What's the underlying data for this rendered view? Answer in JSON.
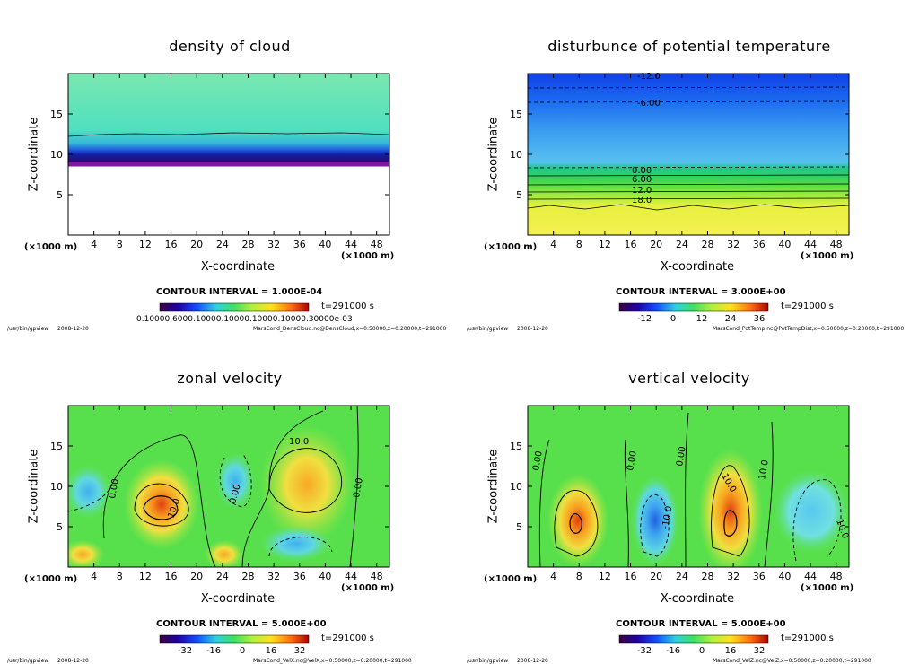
{
  "xlabel": "X-coordinate",
  "ylabel": "Z-coordinate",
  "x_unit": "(×1000 m)",
  "time_label": "t=291000  s",
  "footer_path": "/usr/bin/gpview",
  "footer_date": "2008-12-20",
  "x_ticks": [
    "4",
    "8",
    "12",
    "16",
    "20",
    "24",
    "28",
    "32",
    "36",
    "40",
    "44",
    "48"
  ],
  "y_ticks": [
    "5",
    "10",
    "15"
  ],
  "colors": {
    "background": "#ffffff",
    "frame": "#000000"
  },
  "panels": [
    {
      "title": "density of cloud",
      "contour_interval": "CONTOUR INTERVAL = 1.000E-04",
      "colorbar_labels": [
        "0.10000E-03",
        "0.10000E-03",
        "0.10000E-03",
        "0.10000E-03",
        "0.10000E-03"
      ],
      "colorbar_text": "0.10000.6000.10000.10000.10000.10000.30000e-03",
      "footer_file": "MarsCond_DensCloud.nc@DensCloud,x=0:50000,z=0:20000,t=291000"
    },
    {
      "title": "disturbunce of potential temperature",
      "contour_interval": "CONTOUR INTERVAL = 3.000E+00",
      "colorbar_labels": [
        "-12",
        "0",
        "12",
        "24",
        "36"
      ],
      "contour_labels": [
        "-12.0",
        "-6.00",
        "0.00",
        "6.00",
        "12.0",
        "18.0"
      ],
      "footer_file": "MarsCond_PotTemp.nc@PotTempDist,x=0:50000,z=0:20000,t=291000"
    },
    {
      "title": "zonal velocity",
      "contour_interval": "CONTOUR INTERVAL = 5.000E+00",
      "colorbar_labels": [
        "-32",
        "-16",
        "0",
        "16",
        "32"
      ],
      "contour_labels": [
        "10.0",
        "0.00",
        "0.00",
        "0.00",
        "10.0",
        "0.00"
      ],
      "footer_file": "MarsCond_VelX.nc@VelX,x=0:50000,z=0:20000,t=291000"
    },
    {
      "title": "vertical velocity",
      "contour_interval": "CONTOUR INTERVAL = 5.000E+00",
      "colorbar_labels": [
        "-32",
        "-16",
        "0",
        "16",
        "32"
      ],
      "contour_labels": [
        "0.00",
        "0.00",
        "10.0",
        "0.00",
        "-10.0",
        "10.0",
        "10.0"
      ],
      "footer_file": "MarsCond_VelZ.nc@VelZ,x=0:50000,z=0:20000,t=291000"
    }
  ],
  "chart_data": [
    {
      "type": "heatmap",
      "title": "density of cloud",
      "xlabel": "X-coordinate",
      "ylabel": "Z-coordinate",
      "xlim": [
        0,
        50
      ],
      "ylim": [
        0,
        20
      ],
      "notes": "cloud layer between z≈8.5 and z≈12.5 (×1000 m), highest density at base",
      "colorbar": [
        "0.10000E-03",
        "0.30000e-03"
      ]
    },
    {
      "type": "heatmap",
      "title": "disturbunce of potential temperature",
      "xlabel": "X-coordinate",
      "ylabel": "Z-coordinate",
      "xlim": [
        0,
        50
      ],
      "ylim": [
        0,
        20
      ],
      "contour_levels": [
        -12,
        -6,
        0,
        6,
        12,
        18
      ],
      "colorbar": [
        -12,
        0,
        12,
        24,
        36
      ]
    },
    {
      "type": "heatmap",
      "title": "zonal velocity",
      "xlabel": "X-coordinate",
      "ylabel": "Z-coordinate",
      "xlim": [
        0,
        50
      ],
      "ylim": [
        0,
        20
      ],
      "contour_levels": [
        0,
        10
      ],
      "colorbar": [
        -32,
        -16,
        0,
        16,
        32
      ]
    },
    {
      "type": "heatmap",
      "title": "vertical velocity",
      "xlabel": "X-coordinate",
      "ylabel": "Z-coordinate",
      "xlim": [
        0,
        50
      ],
      "ylim": [
        0,
        20
      ],
      "contour_levels": [
        -10,
        0,
        10
      ],
      "colorbar": [
        -32,
        -16,
        0,
        16,
        32
      ]
    }
  ]
}
